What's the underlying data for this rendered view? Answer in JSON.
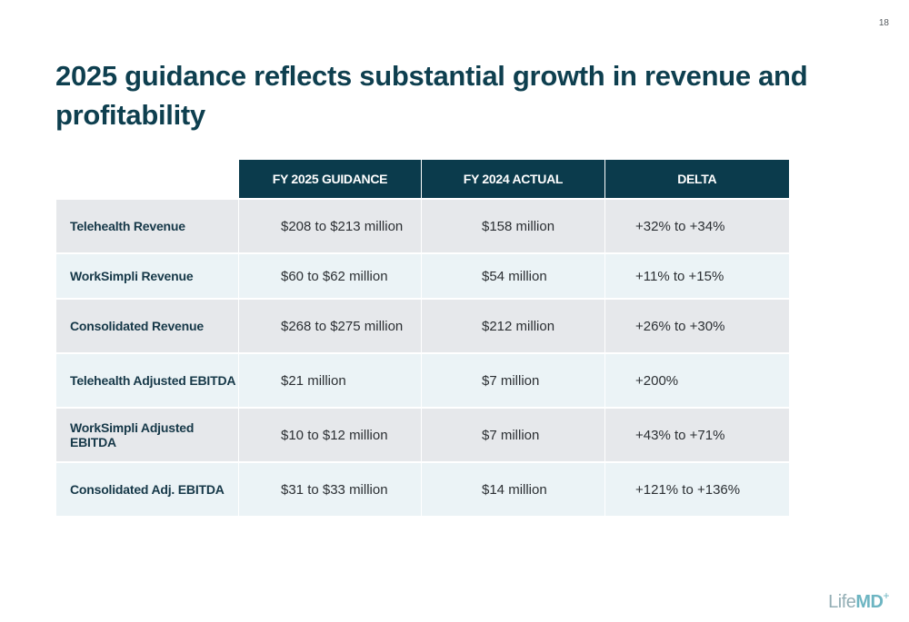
{
  "page_number": "18",
  "title": "2025 guidance reflects substantial growth in revenue and profitability",
  "table": {
    "headers": [
      "",
      "FY 2025 GUIDANCE",
      "FY 2024 ACTUAL",
      "DELTA"
    ],
    "rows": [
      {
        "label": "Telehealth Revenue",
        "fy2025": "$208 to $213 million",
        "fy2024": "$158 million",
        "delta": "+32% to +34%"
      },
      {
        "label": "WorkSimpli Revenue",
        "fy2025": "$60 to $62 million",
        "fy2024": "$54 million",
        "delta": "+11% to +15%"
      },
      {
        "label": "Consolidated Revenue",
        "fy2025": "$268 to $275 million",
        "fy2024": "$212 million",
        "delta": "+26% to +30%"
      },
      {
        "label": "Telehealth Adjusted EBITDA",
        "fy2025": "$21 million",
        "fy2024": "$7 million",
        "delta": "+200%"
      },
      {
        "label": "WorkSimpli Adjusted EBITDA",
        "fy2025": "$10 to $12 million",
        "fy2024": "$7 million",
        "delta": "+43% to +71%"
      },
      {
        "label": "Consolidated Adj. EBITDA",
        "fy2025": "$31 to $33 million",
        "fy2024": "$14 million",
        "delta": "+121% to +136%"
      }
    ]
  },
  "logo": {
    "life": "Life",
    "md": "MD",
    "plus": "+"
  },
  "colors": {
    "header_bg": "#0b3b4c",
    "title": "#0e3f4f",
    "row_grey": "#e6e8eb",
    "row_blue": "#ebf3f6"
  }
}
